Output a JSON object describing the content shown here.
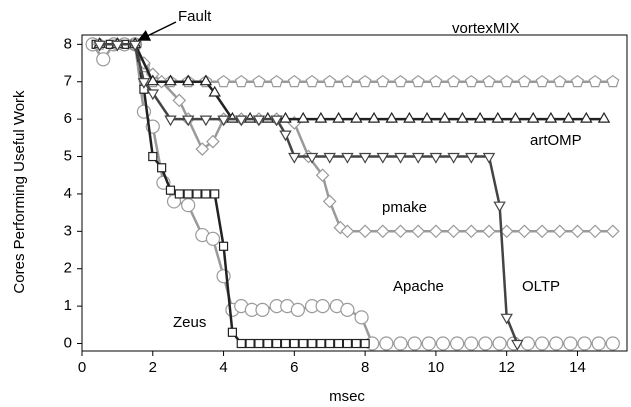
{
  "chart_data": {
    "type": "line",
    "x_label": "msec",
    "y_label": "Cores Performing Useful Work",
    "annotation": "Fault",
    "xlim": [
      0,
      15.4
    ],
    "ylim": [
      -0.2,
      8.25
    ],
    "xticks": [
      0,
      2,
      4,
      6,
      8,
      10,
      12,
      14
    ],
    "yticks": [
      0,
      1,
      2,
      3,
      4,
      5,
      6,
      7,
      8
    ],
    "grid": false,
    "series": [
      {
        "name": "Apache",
        "color": "#9a9a9a",
        "marker": "circle",
        "x": [
          0.3,
          0.6,
          0.9,
          1.2,
          1.5,
          1.75,
          2,
          2.3,
          2.6,
          3,
          3.4,
          3.7,
          4,
          4.25,
          4.5,
          4.8,
          5.1,
          5.5,
          5.8,
          6.1,
          6.5,
          6.8,
          7.2,
          7.5,
          7.9,
          8.2,
          8.6,
          9,
          9.4,
          9.8,
          10.2,
          10.6,
          11,
          11.4,
          11.8,
          12.2,
          12.6,
          13,
          13.4,
          13.8,
          14.2,
          14.6,
          15
        ],
        "values": [
          8,
          7.6,
          8,
          8,
          8,
          6.2,
          5.8,
          4.3,
          3.8,
          3.7,
          2.9,
          2.8,
          1.8,
          0.9,
          1,
          0.9,
          0.9,
          1,
          1,
          0.9,
          1,
          1,
          1,
          0.9,
          0.7,
          0,
          0,
          0,
          0,
          0,
          0,
          0,
          0,
          0,
          0,
          0,
          0,
          0,
          0,
          0,
          0,
          0,
          0
        ]
      },
      {
        "name": "Zeus",
        "color": "#222222",
        "marker": "square",
        "x": [
          0.4,
          0.8,
          1.2,
          1.5,
          1.75,
          2,
          2.25,
          2.5,
          2.75,
          3,
          3.25,
          3.5,
          3.75,
          4,
          4.25,
          4.5,
          4.75,
          5,
          5.25,
          5.5,
          5.75,
          6,
          6.25,
          6.5,
          6.75,
          7,
          7.25,
          7.5,
          7.75,
          8
        ],
        "values": [
          8,
          8,
          8,
          8,
          6.8,
          5,
          4.7,
          4.1,
          4,
          4,
          4,
          4,
          4,
          2.6,
          0.3,
          0,
          0,
          0,
          0,
          0,
          0,
          0,
          0,
          0,
          0,
          0,
          0,
          0,
          0,
          0
        ]
      },
      {
        "name": "vortexMIX",
        "color": "#9a9a9a",
        "marker": "pentagon",
        "x": [
          0.5,
          1,
          1.5,
          1.75,
          2,
          2.5,
          3,
          3.5,
          4,
          4.5,
          5,
          5.5,
          6,
          6.5,
          7,
          7.5,
          8,
          8.5,
          9,
          9.5,
          10,
          10.5,
          11,
          11.5,
          12,
          12.5,
          13,
          13.5,
          14,
          14.5,
          15
        ],
        "values": [
          8,
          8,
          8,
          7.4,
          7,
          7,
          7,
          7,
          7,
          7,
          7,
          7,
          7,
          7,
          7,
          7,
          7,
          7,
          7,
          7,
          7,
          7,
          7,
          7,
          7,
          7,
          7,
          7,
          7,
          7,
          7
        ]
      },
      {
        "name": "pmake",
        "color": "#9a9a9a",
        "marker": "diamond",
        "x": [
          0.5,
          1,
          1.5,
          1.75,
          2,
          2.25,
          2.75,
          3,
          3.4,
          3.7,
          4,
          4.5,
          5,
          5.5,
          6,
          6.4,
          6.8,
          7,
          7.3,
          7.5,
          8,
          8.5,
          9,
          9.5,
          10,
          10.5,
          11,
          11.5,
          12,
          12.5,
          13,
          13.5,
          14,
          14.5,
          15
        ],
        "values": [
          8,
          8,
          8,
          7.5,
          7.2,
          7,
          6.5,
          6,
          5.2,
          5.4,
          6,
          6,
          6,
          6,
          5.9,
          5,
          4.5,
          3.8,
          3.1,
          3,
          3,
          3,
          3,
          3,
          3,
          3,
          3,
          3,
          3,
          3,
          3,
          3,
          3,
          3,
          3
        ]
      },
      {
        "name": "artOMP",
        "color": "#222222",
        "marker": "triangle-up",
        "x": [
          0.5,
          1,
          1.5,
          2,
          2.5,
          3,
          3.5,
          3.75,
          4.25,
          4.75,
          5.25,
          5.75,
          6.25,
          6.75,
          7.25,
          7.75,
          8.25,
          8.75,
          9.25,
          9.75,
          10.25,
          10.75,
          11.25,
          11.75,
          12.25,
          12.75,
          13.25,
          13.75,
          14.25,
          14.75
        ],
        "values": [
          8,
          8,
          8,
          7,
          7,
          7,
          7,
          6.7,
          6,
          6,
          6,
          6,
          6,
          6,
          6,
          6,
          6,
          6,
          6,
          6,
          6,
          6,
          6,
          6,
          6,
          6,
          6,
          6,
          6,
          6
        ]
      },
      {
        "name": "OLTP",
        "color": "#444444",
        "marker": "triangle-down",
        "x": [
          0.5,
          1,
          1.5,
          1.75,
          2,
          2.5,
          3,
          3.5,
          4,
          4.5,
          5,
          5.5,
          5.75,
          6,
          6.5,
          7,
          7.5,
          8,
          8.5,
          9,
          9.5,
          10,
          10.5,
          11,
          11.5,
          11.8,
          12,
          12.3
        ],
        "values": [
          8,
          8,
          8,
          7,
          6.7,
          6,
          6,
          6,
          6,
          6,
          6,
          6,
          5.6,
          5,
          5,
          5,
          5,
          5,
          5,
          5,
          5,
          5,
          5,
          5,
          5,
          3.7,
          0.7,
          0
        ]
      }
    ]
  }
}
